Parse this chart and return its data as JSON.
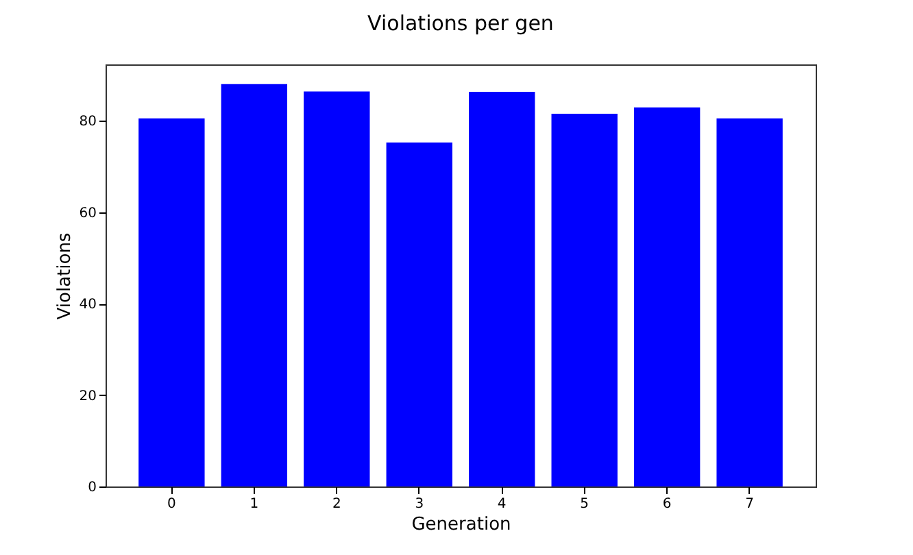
{
  "chart_data": {
    "type": "bar",
    "title": "Violations per gen",
    "xlabel": "Generation",
    "ylabel": "Violations",
    "categories": [
      "0",
      "1",
      "2",
      "3",
      "4",
      "5",
      "6",
      "7"
    ],
    "values": [
      80.5,
      88.0,
      86.4,
      75.2,
      86.3,
      81.5,
      82.9,
      80.5
    ],
    "color": "#0000ff",
    "ylim": [
      0,
      92.3
    ],
    "yticks": [
      0,
      20,
      40,
      60,
      80
    ],
    "grid": false
  }
}
